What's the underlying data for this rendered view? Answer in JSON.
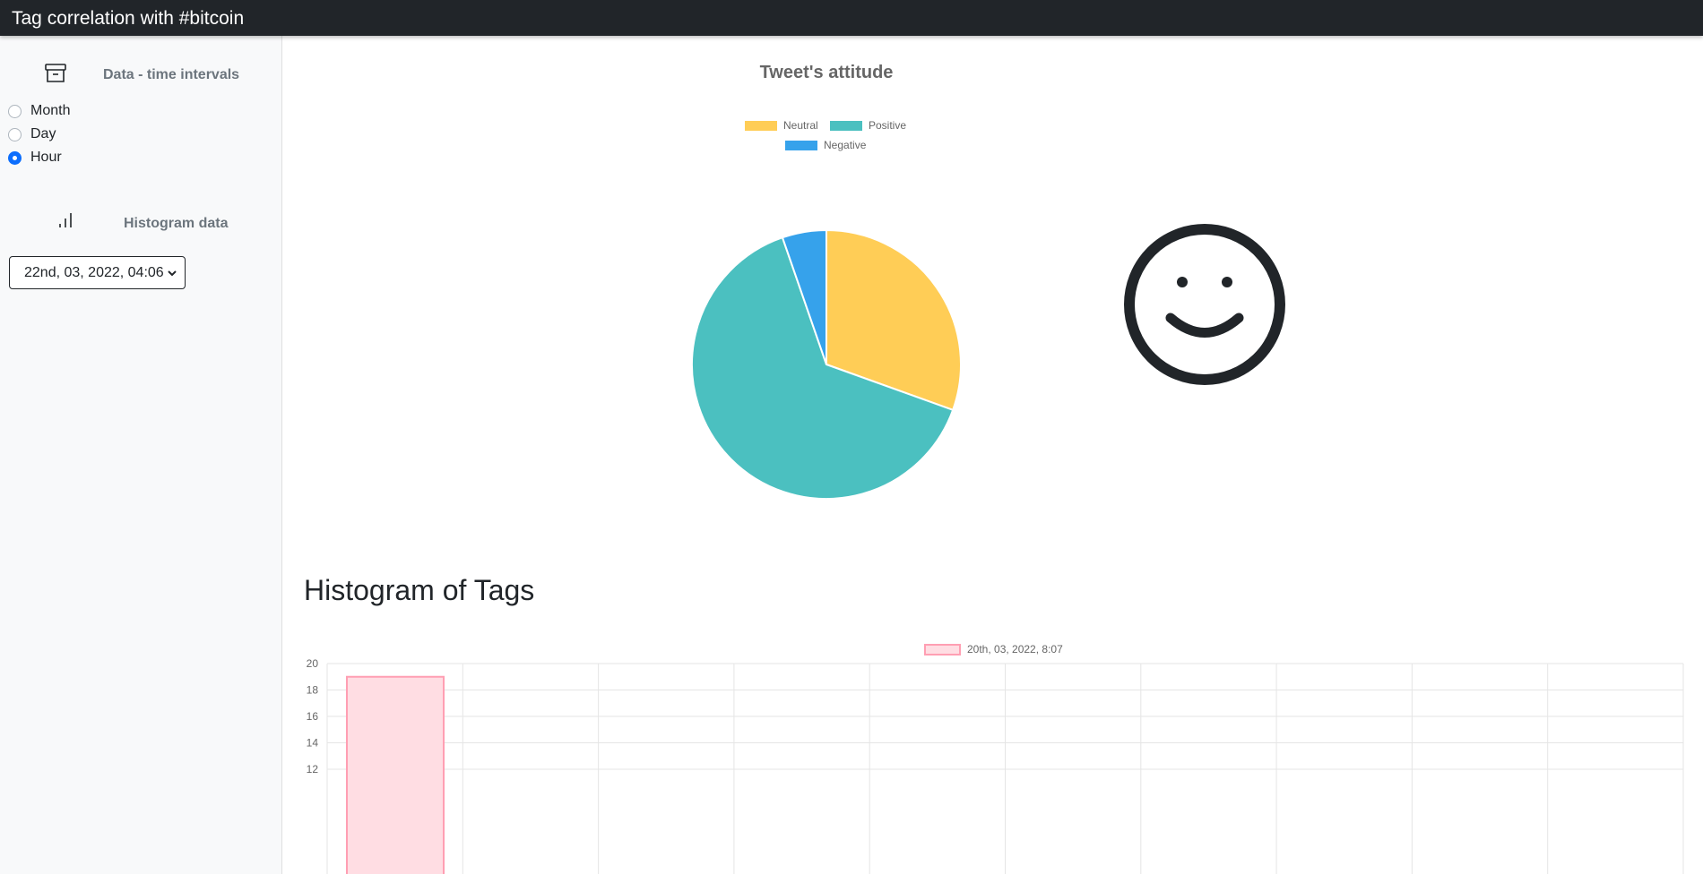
{
  "app": {
    "title": "Tag correlation with #bitcoin"
  },
  "sidebar": {
    "time_intervals": {
      "heading": "Data - time intervals",
      "icon": "archive-icon",
      "options": [
        {
          "label": "Month",
          "checked": false
        },
        {
          "label": "Day",
          "checked": false
        },
        {
          "label": "Hour",
          "checked": true
        }
      ]
    },
    "histogram": {
      "heading": "Histogram data",
      "icon": "bar-chart-icon",
      "selected": "22nd, 03, 2022, 04:06"
    }
  },
  "colors": {
    "neutral": "#ffcd56",
    "positive": "#4bc0c0",
    "negative": "#36a2eb",
    "bar_fill": "#ffdde3",
    "bar_border": "#ff9fb3",
    "topbar": "#212529"
  },
  "attitude_icon": "smile-face-icon",
  "histogram_heading": "Histogram of Tags",
  "chart_data": [
    {
      "type": "pie",
      "title": "Tweet's attitude",
      "legend_position": "top",
      "labels": [
        "Neutral",
        "Positive",
        "Negative"
      ],
      "values": [
        30.5,
        64.2,
        5.3
      ]
    },
    {
      "type": "bar",
      "title": "",
      "legend_position": "top",
      "series": [
        {
          "name": "20th, 03, 2022, 8:07",
          "values": [
            19
          ]
        }
      ],
      "yticks": [
        "20",
        "18",
        "16",
        "14",
        "12"
      ],
      "ylim": [
        12,
        20
      ],
      "grid": true
    }
  ]
}
